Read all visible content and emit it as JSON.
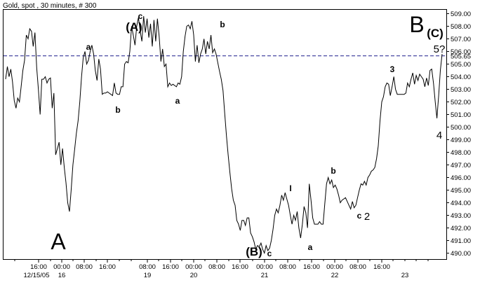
{
  "chart_data": {
    "type": "line",
    "title": "Gold, spot , 30 minutes, # 300",
    "ylim": [
      489.5,
      509.5
    ],
    "y_ticks": [
      "509.00",
      "508.00",
      "507.00",
      "506.00",
      "505.00",
      "504.00",
      "503.00",
      "502.00",
      "501.00",
      "500.00",
      "499.00",
      "498.00",
      "497.00",
      "496.00",
      "495.00",
      "494.00",
      "493.00",
      "492.00",
      "491.00",
      "490.00"
    ],
    "reference_line": {
      "value": 505.65,
      "label": "505.65",
      "style": "dashed",
      "color": "#1a1a8c"
    },
    "x_ticks_time": [
      "16:00",
      "00:00",
      "08:00",
      "16:00",
      "08:00",
      "16:00",
      "00:00",
      "08:00",
      "16:00",
      "00:00",
      "08:00",
      "16:00",
      "00:00",
      "08:00",
      "16:00"
    ],
    "x_ticks_date": [
      "12/15/05",
      "16",
      "19",
      "20",
      "21",
      "22",
      "23"
    ],
    "series": [
      {
        "color": "#000000",
        "values": [
          503.8,
          504.8,
          504.0,
          504.6,
          503.6,
          502.1,
          501.5,
          502.3,
          502.0,
          503.2,
          504.5,
          505.3,
          507.3,
          507.0,
          507.8,
          507.6,
          506.4,
          507.5,
          504.7,
          503.0,
          501.0,
          503.8,
          503.8,
          504.0,
          503.5,
          503.8,
          503.9,
          501.5,
          502.7,
          497.8,
          498.3,
          498.8,
          497.0,
          498.3,
          496.8,
          495.6,
          494.0,
          493.3,
          495.0,
          497.0,
          498.2,
          499.5,
          500.5,
          502.0,
          504.0,
          505.5,
          506.0,
          505.0,
          505.3,
          506.0,
          506.5,
          505.8,
          504.5,
          503.7,
          505.4,
          504.6,
          502.6,
          502.7,
          502.7,
          502.8,
          502.7,
          502.6,
          502.5,
          503.5,
          502.7,
          502.6,
          502.6,
          503.2,
          503.2,
          505.0,
          505.2,
          505.1,
          506.0,
          508.0,
          507.3,
          506.5,
          508.0,
          508.7,
          507.6,
          506.8,
          508.8,
          507.5,
          508.6,
          507.1,
          508.2,
          506.4,
          508.5,
          506.8,
          508.6,
          507.2,
          505.2,
          506.2,
          504.8,
          505.0,
          503.2,
          503.5,
          503.3,
          503.4,
          503.3,
          503.2,
          503.5,
          503.4,
          504.0,
          506.0,
          507.2,
          508.0,
          508.1,
          507.8,
          508.4,
          507.3,
          505.2,
          506.5,
          505.1,
          505.8,
          506.2,
          507.0,
          505.8,
          506.8,
          506.2,
          507.3,
          505.9,
          506.2,
          505.8,
          505.1,
          504.4,
          503.8,
          502.9,
          501.1,
          499.3,
          497.8,
          496.4,
          495.1,
          494.2,
          493.8,
          492.6,
          492.3,
          491.8,
          492.6,
          492.6,
          492.2,
          492.8,
          492.8,
          491.6,
          491.3,
          490.9,
          490.3,
          490.6,
          490.5,
          490.8,
          490.3,
          490.0,
          490.6,
          490.2,
          490.4,
          491.0,
          491.9,
          493.0,
          493.5,
          493.2,
          493.8,
          494.6,
          494.2,
          494.8,
          494.3,
          493.8,
          493.0,
          492.3,
          493.0,
          492.6,
          493.3,
          492.0,
          491.2,
          492.3,
          493.7,
          493.2,
          492.0,
          495.5,
          494.2,
          492.8,
          492.3,
          492.3,
          492.3,
          492.5,
          492.3,
          492.3,
          493.9,
          495.5,
          496.0,
          495.5,
          495.8,
          495.2,
          495.4,
          495.1,
          494.6,
          494.0,
          494.2,
          494.3,
          494.4,
          494.1,
          493.8,
          493.5,
          494.1,
          493.6,
          493.8,
          494.4,
          495.0,
          495.5,
          495.4,
          495.7,
          495.4,
          496.0,
          496.2,
          496.5,
          496.6,
          496.8,
          497.5,
          498.5,
          500.5,
          502.0,
          502.4,
          503.2,
          503.5,
          503.4,
          502.5,
          503.2,
          504.0,
          503.0,
          502.6,
          502.6,
          502.6,
          502.6,
          502.6,
          502.7,
          503.5,
          503.2,
          503.8,
          504.3,
          503.4,
          504.1,
          503.7,
          504.2,
          504.0,
          503.8,
          503.2,
          503.9,
          503.3,
          504.5,
          504.6,
          503.5,
          502.0,
          500.7,
          502.5,
          504.5,
          505.8
        ]
      }
    ],
    "annotations": [
      {
        "text": "a",
        "style": "small"
      },
      {
        "text": "b",
        "style": "small"
      },
      {
        "text": "(A)",
        "style": "bold"
      },
      {
        "text": "c",
        "style": "small"
      },
      {
        "text": "a",
        "style": "small"
      },
      {
        "text": "b",
        "style": "small"
      },
      {
        "text": "(B)",
        "style": "bold"
      },
      {
        "text": "c",
        "style": "small"
      },
      {
        "text": "I",
        "style": "small"
      },
      {
        "text": "a",
        "style": "small"
      },
      {
        "text": "b",
        "style": "small"
      },
      {
        "text": "c",
        "style": "small"
      },
      {
        "text": "2",
        "style": "medium"
      },
      {
        "text": "3",
        "style": "small"
      },
      {
        "text": "4",
        "style": "medium"
      },
      {
        "text": "5?",
        "style": "medium"
      },
      {
        "text": "(C)",
        "style": "bold"
      },
      {
        "text": "A",
        "style": "big"
      },
      {
        "text": "B",
        "style": "big"
      }
    ],
    "grid": false,
    "legend": "none"
  }
}
